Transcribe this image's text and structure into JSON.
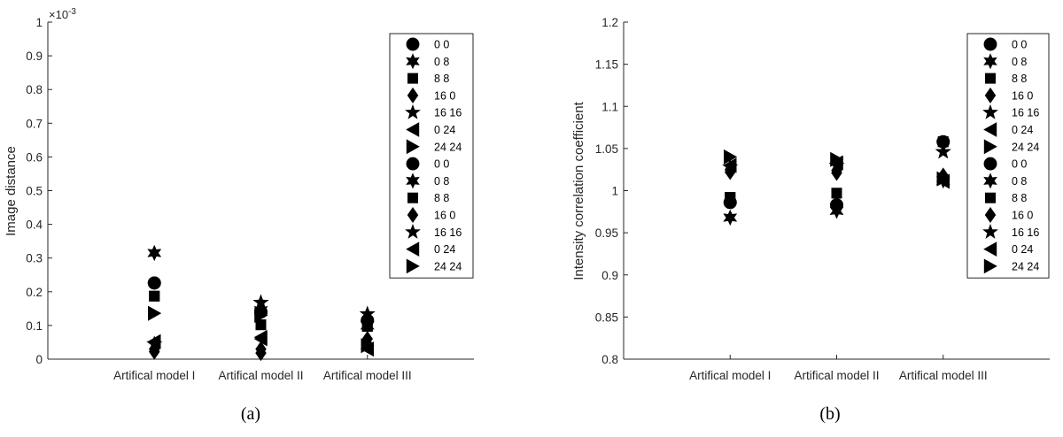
{
  "chart_data": [
    {
      "type": "scatter",
      "caption": "(a)",
      "ylabel": "Image distance",
      "y_exponent": "×10",
      "y_exponent_power": "-3",
      "ylim": [
        0,
        1
      ],
      "yticks": [
        "0",
        "0.1",
        "0.2",
        "0.3",
        "0.4",
        "0.5",
        "0.6",
        "0.7",
        "0.8",
        "0.9",
        "1"
      ],
      "categories": [
        "Artifical model I",
        "Artifical model II",
        "Artifical model III"
      ],
      "legend_position": "top-right",
      "series": [
        {
          "name": "0 0",
          "marker": "circle",
          "values": [
            0.226,
            0.14,
            0.115
          ]
        },
        {
          "name": "0 8",
          "marker": "hexagram",
          "values": [
            0.315,
            0.145,
            0.1
          ]
        },
        {
          "name": "8 8",
          "marker": "square",
          "values": [
            0.187,
            0.102,
            0.097
          ]
        },
        {
          "name": "16 0",
          "marker": "diamond",
          "values": [
            0.022,
            0.018,
            0.06
          ]
        },
        {
          "name": "16 16",
          "marker": "pentagram",
          "values": [
            0.045,
            0.168,
            0.134
          ]
        },
        {
          "name": "0 24",
          "marker": "triangle-left",
          "values": [
            0.052,
            0.06,
            0.03
          ]
        },
        {
          "name": "24 24",
          "marker": "triangle-right",
          "values": [
            0.136,
            0.13,
            0.04
          ]
        },
        {
          "name": "0 0",
          "marker": "circle",
          "values": [
            0.226,
            0.14,
            0.115
          ]
        },
        {
          "name": "0 8",
          "marker": "hexagram",
          "values": [
            0.315,
            0.145,
            0.1
          ]
        },
        {
          "name": "8 8",
          "marker": "square",
          "values": [
            0.187,
            0.102,
            0.097
          ]
        },
        {
          "name": "16 0",
          "marker": "diamond",
          "values": [
            0.03,
            0.03,
            0.045
          ]
        },
        {
          "name": "16 16",
          "marker": "pentagram",
          "values": [
            0.045,
            0.168,
            0.134
          ]
        },
        {
          "name": "0 24",
          "marker": "triangle-left",
          "values": [
            0.052,
            0.065,
            0.03
          ]
        },
        {
          "name": "24 24",
          "marker": "triangle-right",
          "values": [
            0.136,
            0.13,
            0.04
          ]
        }
      ]
    },
    {
      "type": "scatter",
      "caption": "(b)",
      "ylabel": "Intensity correlation coefficient",
      "ylim": [
        0.8,
        1.2
      ],
      "yticks": [
        "0.8",
        "0.85",
        "0.9",
        "0.95",
        "1",
        "1.05",
        "1.1",
        "1.15",
        "1.2"
      ],
      "categories": [
        "Artifical model I",
        "Artifical model II",
        "Artifical model III"
      ],
      "legend_position": "top-right",
      "series": [
        {
          "name": "0 0",
          "marker": "circle",
          "values": [
            0.986,
            0.983,
            1.058
          ]
        },
        {
          "name": "0 8",
          "marker": "hexagram",
          "values": [
            0.968,
            0.976,
            1.012
          ]
        },
        {
          "name": "8 8",
          "marker": "square",
          "values": [
            0.992,
            0.997,
            1.058
          ]
        },
        {
          "name": "16 0",
          "marker": "diamond",
          "values": [
            1.022,
            1.021,
            1.016
          ]
        },
        {
          "name": "16 16",
          "marker": "pentagram",
          "values": [
            1.028,
            1.03,
            1.046
          ]
        },
        {
          "name": "0 24",
          "marker": "triangle-left",
          "values": [
            1.03,
            1.033,
            1.011
          ]
        },
        {
          "name": "24 24",
          "marker": "triangle-right",
          "values": [
            1.04,
            1.037,
            1.014
          ]
        },
        {
          "name": "0 0",
          "marker": "circle",
          "values": [
            0.986,
            0.983,
            1.058
          ]
        },
        {
          "name": "0 8",
          "marker": "hexagram",
          "values": [
            0.968,
            0.976,
            1.012
          ]
        },
        {
          "name": "8 8",
          "marker": "square",
          "values": [
            0.992,
            0.997,
            1.058
          ]
        },
        {
          "name": "16 0",
          "marker": "diamond",
          "values": [
            1.025,
            1.024,
            1.018
          ]
        },
        {
          "name": "16 16",
          "marker": "pentagram",
          "values": [
            1.028,
            1.03,
            1.046
          ]
        },
        {
          "name": "0 24",
          "marker": "triangle-left",
          "values": [
            1.03,
            1.033,
            1.011
          ]
        },
        {
          "name": "24 24",
          "marker": "triangle-right",
          "values": [
            1.04,
            1.037,
            1.014
          ]
        }
      ]
    }
  ]
}
